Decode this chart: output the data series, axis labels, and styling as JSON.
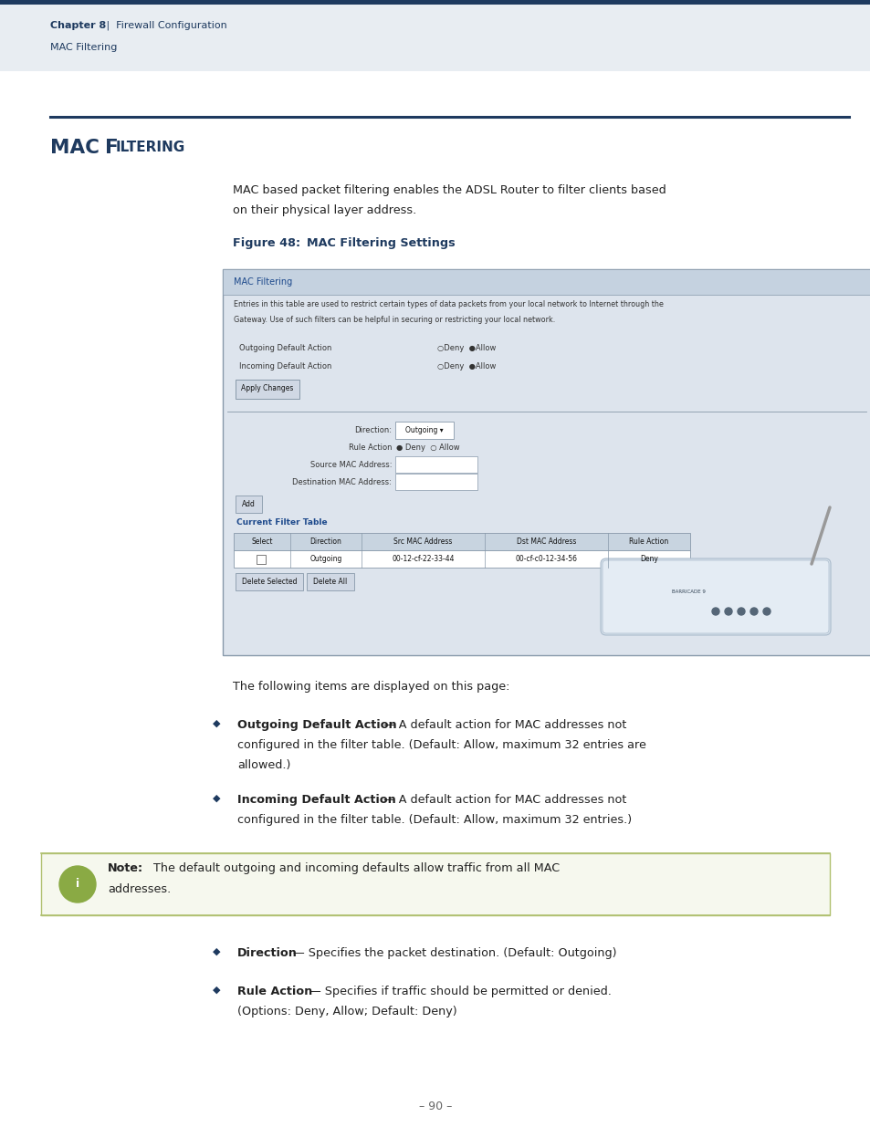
{
  "page_bg": "#ffffff",
  "header_bar_color": "#1e3a5f",
  "header_bg": "#e8edf2",
  "chapter_bold": "Chapter 8",
  "chapter_sep": "  |  ",
  "chapter_rest": "Firewall Configuration",
  "chapter_sub": "MAC Filtering",
  "section_title_mac": "MAC ",
  "section_title_f": "F",
  "section_title_iltering": "ILTERING",
  "section_title_color": "#1e3a5f",
  "intro_text_line1": "MAC based packet filtering enables the ADSL Router to filter clients based",
  "intro_text_line2": "on their physical layer address.",
  "figure_label_bold": "Figure 48:",
  "figure_label_rest": "  MAC Filtering Settings",
  "figure_label_color": "#1e3a5f",
  "ss_title": "MAC Filtering",
  "ss_title_color": "#1e4a8c",
  "ss_desc1": "Entries in this table are used to restrict certain types of data packets from your local network to Internet through the",
  "ss_desc2": "Gateway. Use of such filters can be helpful in securing or restricting your local network.",
  "ss_outgoing": "Outgoing Default Action",
  "ss_incoming": "Incoming Default Action",
  "ss_apply": "Apply Changes",
  "ss_direction": "Direction:",
  "ss_outgoing_val": "Outgoing",
  "ss_rule": "Rule Action",
  "ss_src": "Source MAC Address:",
  "ss_dst": "Destination MAC Address:",
  "ss_add": "Add",
  "ss_cft": "Current Filter Table",
  "ss_cft_color": "#1e4a8c",
  "tbl_headers": [
    "Select",
    "Direction",
    "Src MAC Address",
    "Dst MAC Address",
    "Rule Action"
  ],
  "tbl_row": [
    "",
    "Outgoing",
    "00-12-cf-22-33-44",
    "00-cf-c0-12-34-56",
    "Deny"
  ],
  "ss_del_sel": "Delete Selected",
  "ss_del_all": "Delete All",
  "following_text": "The following items are displayed on this page:",
  "bullet_color": "#1e3a5f",
  "body_color": "#222222",
  "b1_bold": "Outgoing Default Action",
  "b1_rest1": " — A default action for MAC addresses not",
  "b1_rest2": "configured in the filter table. (Default: Allow, maximum 32 entries are",
  "b1_rest3": "allowed.)",
  "b2_bold": "Incoming Default Action",
  "b2_rest1": " — A default action for MAC addresses not",
  "b2_rest2": "configured in the filter table. (Default: Allow, maximum 32 entries.)",
  "note_bg": "#f5f7f0",
  "note_border": "#8aaa44",
  "note_icon_bg": "#8aaa44",
  "note_bold": "Note:",
  "note_rest": " The default outgoing and incoming defaults allow traffic from all MAC",
  "note_rest2": "addresses.",
  "b3_bold": "Direction",
  "b3_rest": " — Specifies the packet destination. (Default: Outgoing)",
  "b4_bold": "Rule Action",
  "b4_rest1": " — Specifies if traffic should be permitted or denied.",
  "b4_rest2": "(Options: Deny, Allow; Default: Deny)",
  "page_num": "– 90 –",
  "ss_bg": "#dde4ed",
  "ss_border": "#8899aa",
  "ss_inner_bg": "#dde4ed",
  "tbl_hdr_bg": "#c8d4e0",
  "btn_bg": "#d0d8e4",
  "btn_border": "#8899aa",
  "sep_color": "#8899aa",
  "input_bg": "#ffffff",
  "input_border": "#8899aa"
}
